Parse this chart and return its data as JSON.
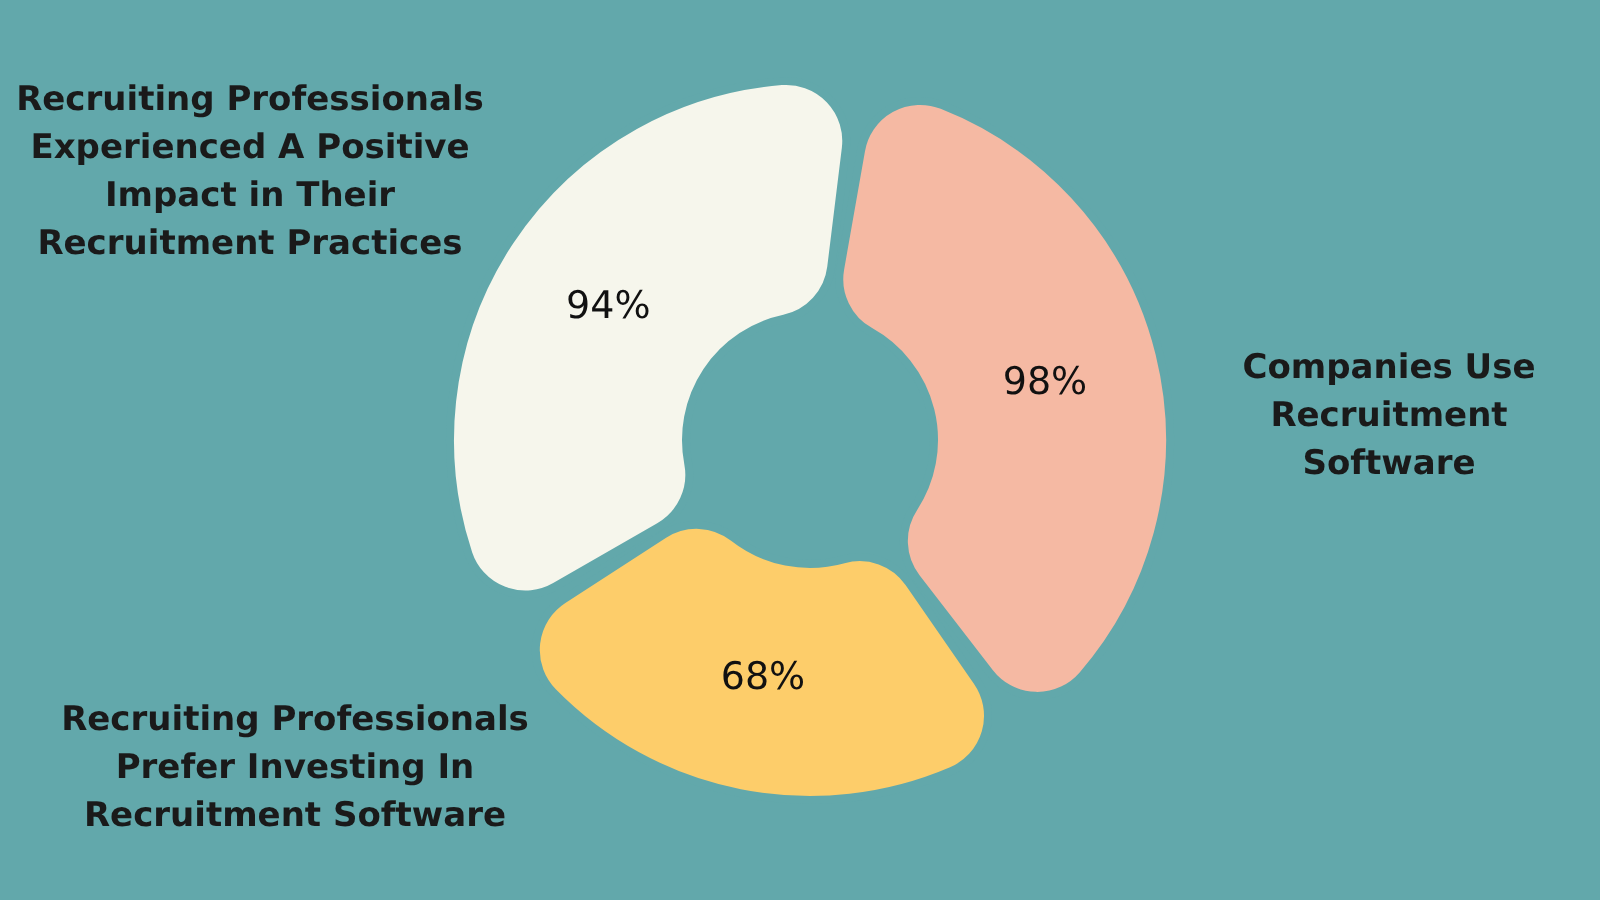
{
  "chart_data": {
    "type": "donut",
    "categories": [
      "Companies Use Recruitment Software",
      "Recruiting Professionals Prefer Investing In Recruitment Software",
      "Recruiting Professionals Experienced A Positive Impact in Their Recruitment Practices"
    ],
    "values": [
      98,
      68,
      94
    ],
    "value_labels": [
      "98%",
      "68%",
      "94%"
    ],
    "colors": [
      "#f5b9a3",
      "#fdcd6a",
      "#f6f6ec"
    ]
  }
}
